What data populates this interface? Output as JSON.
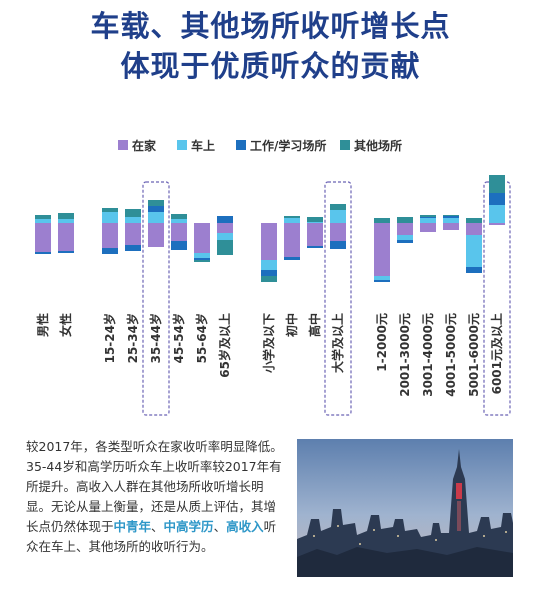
{
  "header": {
    "line1": "车载、其他场所收听增长点",
    "line2": "体现于优质听众的贡献"
  },
  "chart_data": {
    "type": "bar",
    "stacking": "diverging",
    "legend_position": "top",
    "grid": false,
    "categories": [
      "男性",
      "女性",
      "15-24岁",
      "25-34岁",
      "35-44岁",
      "45-54岁",
      "55-64岁",
      "65岁及以上",
      "小学及以下",
      "初中",
      "高中",
      "大学及以上",
      "1-2000元",
      "2001-3000元",
      "3001-4000元",
      "4001-5000元",
      "5001-6000元",
      "6001元及以上"
    ],
    "group_sizes": [
      2,
      6,
      4,
      6
    ],
    "highlighted": [
      "35-44岁",
      "大学及以上",
      "6001元及以上"
    ],
    "series": [
      {
        "name": "在家",
        "color": "#9c7fcf",
        "values": [
          -2.9,
          -2.8,
          -2.5,
          -2.2,
          -2.4,
          -1.8,
          -3.0,
          -1.0,
          -3.7,
          -3.4,
          -2.3,
          -1.8,
          -5.3,
          -1.2,
          -0.9,
          -0.7,
          -1.2,
          -0.2
        ]
      },
      {
        "name": "车上",
        "color": "#59c5ec",
        "values": [
          0.4,
          0.4,
          1.1,
          0.6,
          1.1,
          0.4,
          -0.5,
          -0.7,
          -1.0,
          0.5,
          0.1,
          1.3,
          -0.4,
          -0.5,
          0.5,
          0.5,
          -3.2,
          1.8
        ]
      },
      {
        "name": "工作/学习场所",
        "color": "#1d6fbe",
        "values": [
          -0.2,
          -0.2,
          -0.6,
          -0.6,
          0.6,
          -0.9,
          -0.2,
          0.7,
          -0.6,
          -0.3,
          -0.2,
          -0.8,
          -0.2,
          -0.3,
          0.1,
          0.2,
          -0.6,
          1.2
        ]
      },
      {
        "name": "其他场所",
        "color": "#2f8f98",
        "values": [
          0.4,
          0.6,
          0.4,
          0.8,
          0.6,
          0.5,
          -0.2,
          -1.5,
          -0.6,
          0.2,
          0.5,
          0.6,
          0.5,
          0.6,
          0.2,
          0.1,
          0.5,
          1.8
        ]
      }
    ]
  },
  "description": {
    "p1": "较2017年，各类型听众在家收听率明显降低。35-44岁和高学历听众车上收听率较2017年有所提升。高收入人群在其他场所收听增长明显。无论从量上衡量，还是从质上评估，其增长点仍然体现于",
    "h1": "中青年",
    "sep1": "、",
    "h2": "中高学历",
    "sep2": "、",
    "h3": "高收入",
    "p2": "听众在车上、其他场所的收听行为。"
  }
}
